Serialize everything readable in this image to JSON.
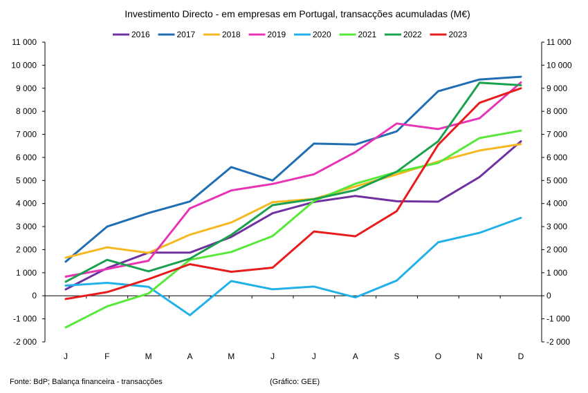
{
  "chart_data": {
    "type": "line",
    "title": "Investimento  Directo - em empresas em Portugal,  transacções acumuladas  (M€)",
    "categories": [
      "J",
      "F",
      "M",
      "A",
      "M",
      "J",
      "J",
      "A",
      "S",
      "O",
      "N",
      "D"
    ],
    "ylim": [
      -2000,
      11000
    ],
    "yticks": [
      -2000,
      -1000,
      0,
      1000,
      2000,
      3000,
      4000,
      5000,
      6000,
      7000,
      8000,
      9000,
      10000,
      11000
    ],
    "ytick_labels": [
      "-2 000",
      "-1 000",
      "0",
      "1 000",
      "2 000",
      "3 000",
      "4 000",
      "5 000",
      "6 000",
      "7 000",
      "8 000",
      "9 000",
      "10 000",
      "11 000"
    ],
    "dual_y_axis": true,
    "grid": false,
    "legend_position": "top",
    "series": [
      {
        "name": "2016",
        "color": "#7030a0",
        "values": [
          280,
          1200,
          1870,
          1870,
          2550,
          3580,
          4070,
          4330,
          4100,
          4080,
          5150,
          6700
        ]
      },
      {
        "name": "2017",
        "color": "#1f6db3",
        "values": [
          1480,
          3000,
          3590,
          4090,
          5580,
          5000,
          6600,
          6560,
          7130,
          8870,
          9380,
          9500
        ]
      },
      {
        "name": "2018",
        "color": "#f5b820",
        "values": [
          1650,
          2100,
          1860,
          2650,
          3180,
          4060,
          4200,
          4740,
          5260,
          5820,
          6300,
          6580
        ]
      },
      {
        "name": "2019",
        "color": "#e833b5",
        "values": [
          830,
          1160,
          1520,
          3790,
          4570,
          4850,
          5270,
          6230,
          7470,
          7230,
          7700,
          9250
        ]
      },
      {
        "name": "2020",
        "color": "#21b0e8",
        "values": [
          440,
          560,
          390,
          -840,
          640,
          280,
          400,
          -70,
          660,
          2320,
          2730,
          3380
        ]
      },
      {
        "name": "2021",
        "color": "#58e83a",
        "values": [
          -1370,
          -460,
          100,
          1560,
          1900,
          2590,
          4110,
          4860,
          5370,
          5760,
          6840,
          7160
        ]
      },
      {
        "name": "2022",
        "color": "#1aa14e",
        "values": [
          610,
          1560,
          1060,
          1610,
          2640,
          3930,
          4190,
          4580,
          5380,
          6700,
          9240,
          9130
        ]
      },
      {
        "name": "2023",
        "color": "#e81c1c",
        "values": [
          -140,
          160,
          720,
          1370,
          1040,
          1220,
          2790,
          2580,
          3670,
          6550,
          8370,
          9000
        ]
      }
    ]
  },
  "footnotes": {
    "source": "Fonte:  BdP; Balança financeira - transacções",
    "credit": "(Gráfico: GEE)"
  }
}
